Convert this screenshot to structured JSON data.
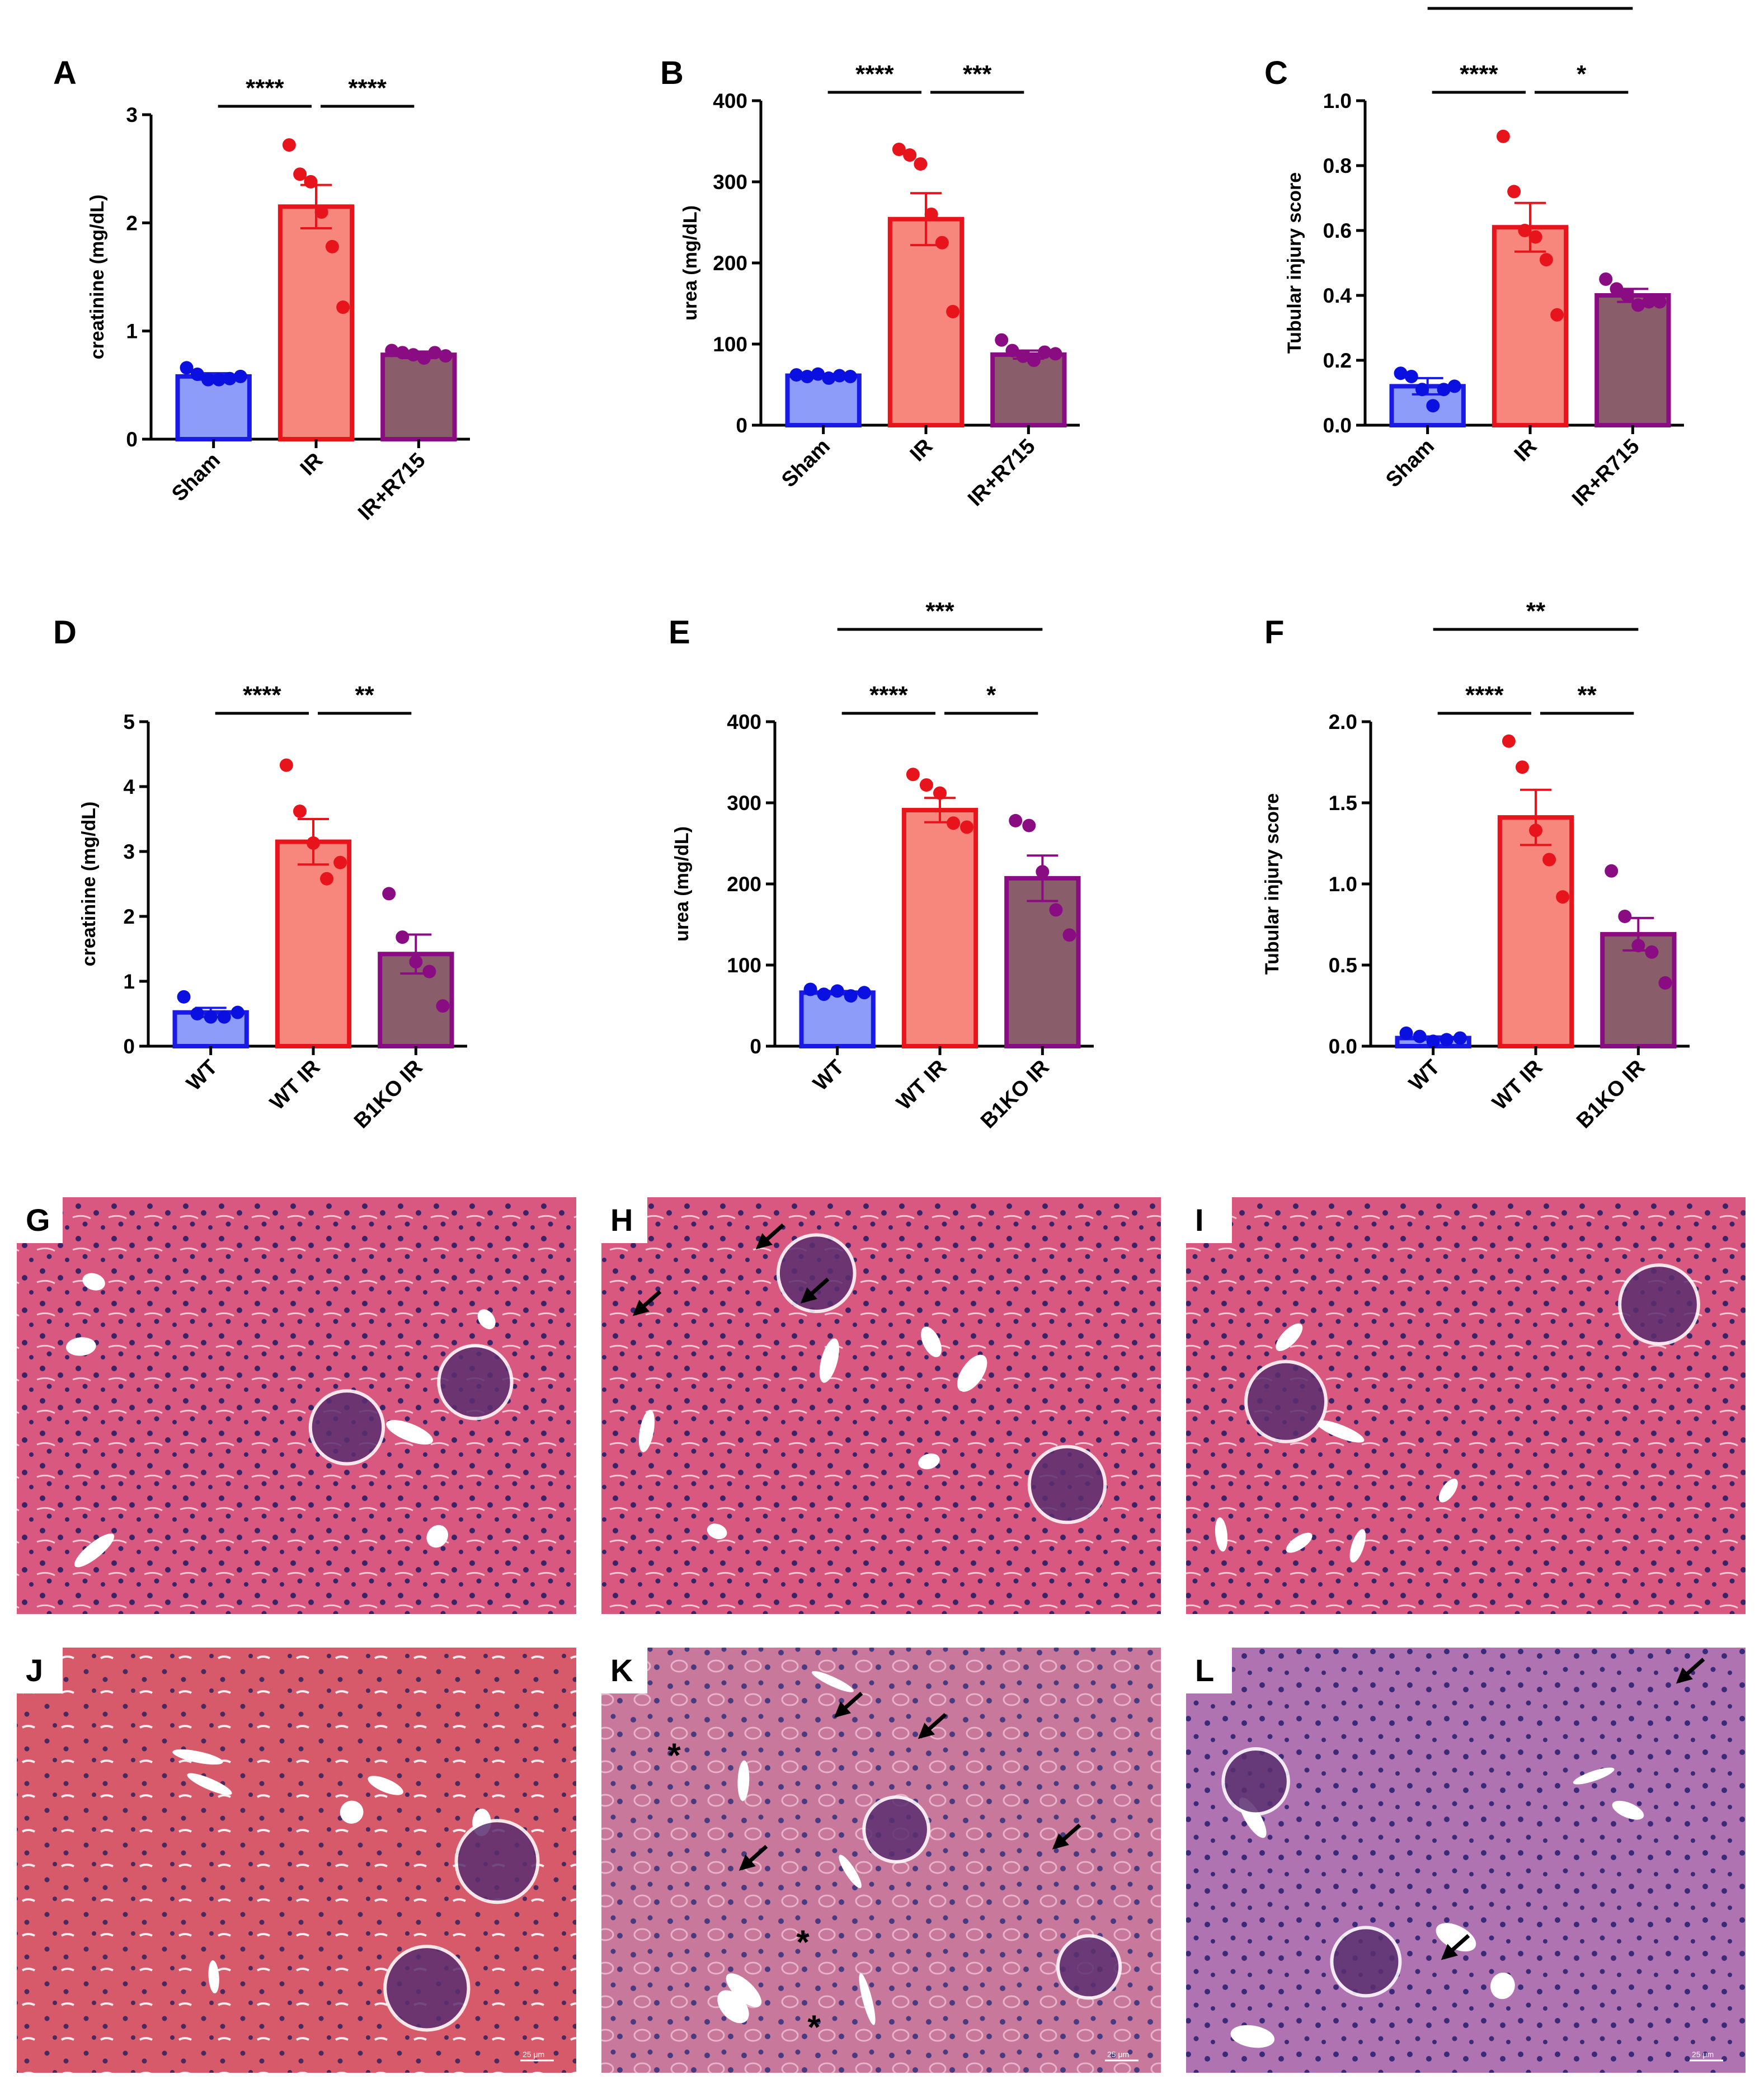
{
  "colors": {
    "sham_fill": "#8c9cf8",
    "sham_edge": "#1a1ae6",
    "sham_dot": "#0a10e0",
    "ir_fill": "#f7867c",
    "ir_edge": "#e8141c",
    "ir_dot": "#e8141c",
    "r715_fill": "#8a5d6a",
    "r715_edge": "#8a0c82",
    "r715_dot": "#8a0c82",
    "he_pink": "#d9587f",
    "he_purple": "#2c1a5e",
    "he_lumen": "#ffffff"
  },
  "chart_data": [
    {
      "letter": "A",
      "type": "bar",
      "ylabel": "creatinine (mg/dL)",
      "categories": [
        "Sham",
        "IR",
        "IR+R715"
      ],
      "ylim": [
        0,
        3
      ],
      "yticks": [
        "0",
        "1",
        "2",
        "3"
      ],
      "values": [
        0.58,
        2.15,
        0.78
      ],
      "errors": [
        0.03,
        0.2,
        0.03
      ],
      "points": [
        [
          0.66,
          0.6,
          0.55,
          0.55,
          0.56,
          0.58
        ],
        [
          2.72,
          2.45,
          2.38,
          2.1,
          1.78,
          1.22
        ],
        [
          0.82,
          0.8,
          0.78,
          0.75,
          0.8,
          0.77
        ]
      ],
      "brackets": [
        {
          "from": 0,
          "to": 1,
          "label": "****",
          "level": 0
        },
        {
          "from": 1,
          "to": 2,
          "label": "****",
          "level": 0
        }
      ]
    },
    {
      "letter": "B",
      "type": "bar",
      "ylabel": "urea (mg/dL)",
      "categories": [
        "Sham",
        "IR",
        "IR+R715"
      ],
      "ylim": [
        0,
        400
      ],
      "yticks": [
        "0",
        "100",
        "200",
        "300",
        "400"
      ],
      "values": [
        61,
        254,
        87
      ],
      "errors": [
        2,
        32,
        5
      ],
      "points": [
        [
          62,
          60,
          63,
          58,
          61,
          60
        ],
        [
          340,
          333,
          322,
          260,
          225,
          140
        ],
        [
          105,
          92,
          85,
          80,
          90,
          88
        ]
      ],
      "brackets": [
        {
          "from": 0,
          "to": 1,
          "label": "****",
          "level": 0
        },
        {
          "from": 1,
          "to": 2,
          "label": "***",
          "level": 0
        }
      ]
    },
    {
      "letter": "C",
      "type": "bar",
      "ylabel": "Tubular injury score",
      "categories": [
        "Sham",
        "IR",
        "IR+R715"
      ],
      "ylim": [
        0,
        1.0
      ],
      "yticks": [
        "0.0",
        "0.2",
        "0.4",
        "0.6",
        "0.8",
        "1.0"
      ],
      "values": [
        0.12,
        0.61,
        0.4
      ],
      "errors": [
        0.025,
        0.075,
        0.02
      ],
      "points": [
        [
          0.16,
          0.15,
          0.11,
          0.06,
          0.11,
          0.12
        ],
        [
          0.89,
          0.72,
          0.6,
          0.58,
          0.51,
          0.34
        ],
        [
          0.45,
          0.42,
          0.4,
          0.37,
          0.38,
          0.38
        ]
      ],
      "brackets": [
        {
          "from": 0,
          "to": 1,
          "label": "****",
          "level": 0
        },
        {
          "from": 1,
          "to": 2,
          "label": "*",
          "level": 0
        },
        {
          "from": 0,
          "to": 2,
          "label": "**",
          "level": 1
        }
      ]
    },
    {
      "letter": "D",
      "type": "bar",
      "ylabel": "creatinine (mg/dL)",
      "categories": [
        "WT",
        "WT IR",
        "B1KO IR"
      ],
      "ylim": [
        0,
        5
      ],
      "yticks": [
        "0",
        "1",
        "2",
        "3",
        "4",
        "5"
      ],
      "values": [
        0.52,
        3.15,
        1.42
      ],
      "errors": [
        0.07,
        0.35,
        0.3
      ],
      "points": [
        [
          0.76,
          0.5,
          0.45,
          0.45,
          0.52
        ],
        [
          4.33,
          3.62,
          3.13,
          2.58,
          2.83
        ],
        [
          2.35,
          1.68,
          1.3,
          1.15,
          0.62
        ]
      ],
      "brackets": [
        {
          "from": 0,
          "to": 1,
          "label": "****",
          "level": 0
        },
        {
          "from": 1,
          "to": 2,
          "label": "**",
          "level": 0
        }
      ]
    },
    {
      "letter": "E",
      "type": "bar",
      "ylabel": "urea (mg/dL)",
      "categories": [
        "WT",
        "WT IR",
        "B1KO IR"
      ],
      "ylim": [
        0,
        400
      ],
      "yticks": [
        "0",
        "100",
        "200",
        "300",
        "400"
      ],
      "values": [
        66,
        291,
        207
      ],
      "errors": [
        2,
        15,
        28
      ],
      "points": [
        [
          70,
          64,
          68,
          62,
          66
        ],
        [
          335,
          322,
          312,
          275,
          270
        ],
        [
          278,
          272,
          215,
          168,
          137
        ]
      ],
      "brackets": [
        {
          "from": 0,
          "to": 1,
          "label": "****",
          "level": 0
        },
        {
          "from": 1,
          "to": 2,
          "label": "*",
          "level": 0
        },
        {
          "from": 0,
          "to": 2,
          "label": "***",
          "level": 1
        }
      ]
    },
    {
      "letter": "F",
      "type": "bar",
      "ylabel": "Tubular injury score",
      "categories": [
        "WT",
        "WT IR",
        "B1KO IR"
      ],
      "ylim": [
        0,
        2.0
      ],
      "yticks": [
        "0.0",
        "0.5",
        "1.0",
        "1.5",
        "2.0"
      ],
      "values": [
        0.05,
        1.41,
        0.69
      ],
      "errors": [
        0.01,
        0.17,
        0.1
      ],
      "points": [
        [
          0.08,
          0.06,
          0.03,
          0.04,
          0.05
        ],
        [
          1.88,
          1.72,
          1.33,
          1.15,
          0.92
        ],
        [
          1.08,
          0.8,
          0.62,
          0.58,
          0.39
        ]
      ],
      "brackets": [
        {
          "from": 0,
          "to": 1,
          "label": "****",
          "level": 0
        },
        {
          "from": 1,
          "to": 2,
          "label": "**",
          "level": 0
        },
        {
          "from": 0,
          "to": 2,
          "label": "**",
          "level": 1
        }
      ]
    }
  ],
  "histology": [
    {
      "letter": "G",
      "palette": "pink",
      "arrows": 0,
      "asterisks": 0,
      "scalebar": ""
    },
    {
      "letter": "H",
      "palette": "pink",
      "arrows": 3,
      "asterisks": 0,
      "scalebar": ""
    },
    {
      "letter": "I",
      "palette": "pink",
      "arrows": 0,
      "asterisks": 0,
      "scalebar": ""
    },
    {
      "letter": "J",
      "palette": "red",
      "arrows": 0,
      "asterisks": 0,
      "scalebar": "25 μm"
    },
    {
      "letter": "K",
      "palette": "mauve",
      "arrows": 4,
      "asterisks": 3,
      "scalebar": "25 μm"
    },
    {
      "letter": "L",
      "palette": "lilac",
      "arrows": 2,
      "asterisks": 0,
      "scalebar": "25 μm"
    }
  ],
  "marks": {
    "asterisk": "*",
    "arrow": "arrow-icon"
  }
}
